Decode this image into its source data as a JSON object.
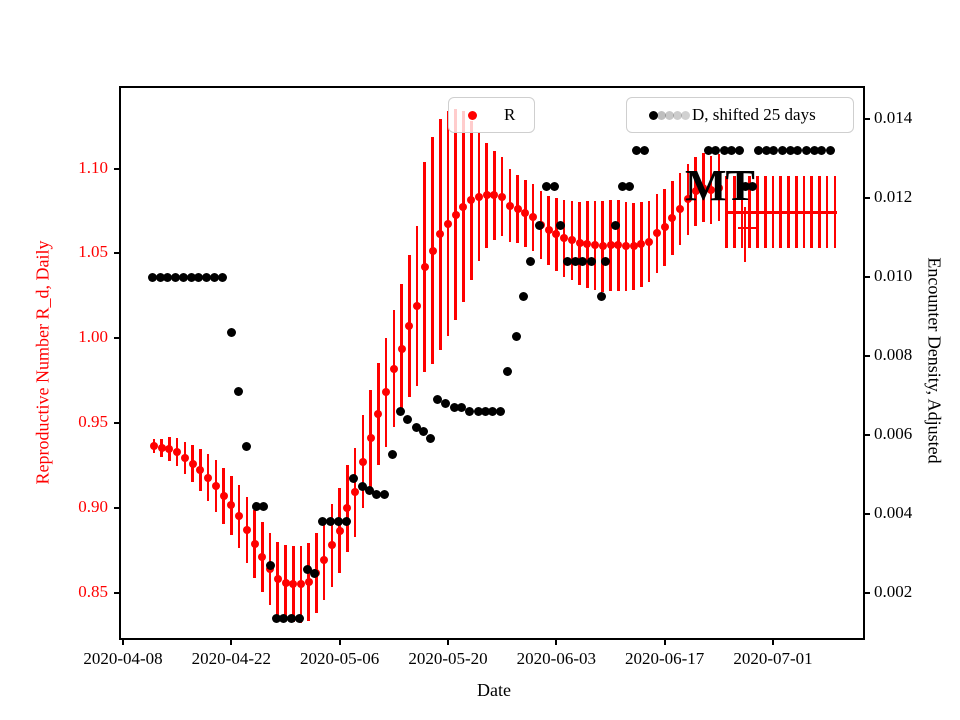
{
  "figure": {
    "bg": "#ffffff",
    "accent_red": "#ff0000",
    "black": "#000000"
  },
  "axes": {
    "xlabel": "Date",
    "left_ylabel": "Reproductive Number R_d, Daily",
    "right_ylabel": "Encounter Density, Adjusted",
    "left_label_color": "#ff0000",
    "right_label_color": "#000000",
    "x_ticks": [
      {
        "day": 0,
        "label": "2020-04-08"
      },
      {
        "day": 14,
        "label": "2020-04-22"
      },
      {
        "day": 28,
        "label": "2020-05-06"
      },
      {
        "day": 42,
        "label": "2020-05-20"
      },
      {
        "day": 56,
        "label": "2020-06-03"
      },
      {
        "day": 70,
        "label": "2020-06-17"
      },
      {
        "day": 84,
        "label": "2020-07-01"
      }
    ],
    "left_ticks": [
      {
        "v": 1.1,
        "label": "1.10"
      },
      {
        "v": 1.05,
        "label": "1.05"
      },
      {
        "v": 1.0,
        "label": "1.00"
      },
      {
        "v": 0.95,
        "label": "0.95"
      },
      {
        "v": 0.9,
        "label": "0.90"
      },
      {
        "v": 0.85,
        "label": "0.85"
      }
    ],
    "right_ticks": [
      {
        "v": 0.014,
        "label": "0.014"
      },
      {
        "v": 0.012,
        "label": "0.012"
      },
      {
        "v": 0.01,
        "label": "0.010"
      },
      {
        "v": 0.008,
        "label": "0.008"
      },
      {
        "v": 0.006,
        "label": "0.006"
      },
      {
        "v": 0.004,
        "label": "0.004"
      },
      {
        "v": 0.002,
        "label": "0.002"
      }
    ]
  },
  "legends": {
    "r": {
      "label": "R",
      "marker_color": "#ff0000"
    },
    "d": {
      "label": "D, shifted 25 days",
      "marker_color": "#000000",
      "fade_opacities": [
        1,
        0.25,
        0.22,
        0.2,
        0.18
      ]
    }
  },
  "annotation": {
    "text": "MT"
  },
  "chart_data": {
    "type": "scatter",
    "x_origin_date": "2020-04-08",
    "x_unit": "days_since_origin",
    "left_ylim": [
      0.822,
      1.149
    ],
    "right_ylim": [
      0.0008,
      0.0148
    ],
    "x_range_days": [
      -0.5,
      95.9
    ],
    "grid": false,
    "series": [
      {
        "name": "R",
        "axis": "left",
        "color": "#ff0000",
        "marker": "circle",
        "errorbars": true,
        "points_day_value_err": [
          [
            4,
            0.9365,
            0.0041
          ],
          [
            5,
            0.9353,
            0.0055
          ],
          [
            6,
            0.9347,
            0.0069
          ],
          [
            7,
            0.933,
            0.0083
          ],
          [
            8,
            0.9295,
            0.0097
          ],
          [
            9,
            0.9262,
            0.0111
          ],
          [
            10,
            0.9224,
            0.0125
          ],
          [
            11,
            0.918,
            0.0139
          ],
          [
            12,
            0.9129,
            0.0153
          ],
          [
            13,
            0.9074,
            0.0165
          ],
          [
            14,
            0.9016,
            0.0175
          ],
          [
            15,
            0.8951,
            0.0185
          ],
          [
            16,
            0.887,
            0.0193
          ],
          [
            17,
            0.879,
            0.02
          ],
          [
            18,
            0.871,
            0.0206
          ],
          [
            19,
            0.864,
            0.0211
          ],
          [
            20,
            0.8585,
            0.0216
          ],
          [
            21,
            0.8561,
            0.022
          ],
          [
            22,
            0.8551,
            0.0224
          ],
          [
            23,
            0.8551,
            0.0228
          ],
          [
            24,
            0.8565,
            0.0232
          ],
          [
            25,
            0.862,
            0.0236
          ],
          [
            26,
            0.8696,
            0.024
          ],
          [
            27,
            0.8782,
            0.0245
          ],
          [
            28,
            0.8866,
            0.025
          ],
          [
            29,
            0.9,
            0.0256
          ],
          [
            30,
            0.9092,
            0.0263
          ],
          [
            31,
            0.9274,
            0.0272
          ],
          [
            32,
            0.941,
            0.0285
          ],
          [
            33,
            0.9552,
            0.03
          ],
          [
            34,
            0.9681,
            0.032
          ],
          [
            35,
            0.9822,
            0.0345
          ],
          [
            36,
            0.9938,
            0.038
          ],
          [
            37,
            1.0072,
            0.042
          ],
          [
            38,
            1.0189,
            0.047
          ],
          [
            39,
            1.0419,
            0.062
          ],
          [
            40,
            1.0517,
            0.067
          ],
          [
            41,
            1.0613,
            0.068
          ],
          [
            42,
            1.0676,
            0.066
          ],
          [
            43,
            1.0729,
            0.062
          ],
          [
            44,
            1.0776,
            0.056
          ],
          [
            45,
            1.0812,
            0.047
          ],
          [
            46,
            1.0835,
            0.038
          ],
          [
            47,
            1.0841,
            0.031
          ],
          [
            48,
            1.0841,
            0.026
          ],
          [
            49,
            1.0835,
            0.0235
          ],
          [
            50,
            1.0782,
            0.0215
          ],
          [
            51,
            1.0759,
            0.02
          ],
          [
            52,
            1.0735,
            0.0195
          ],
          [
            53,
            1.0712,
            0.0195
          ],
          [
            54,
            1.0665,
            0.02
          ],
          [
            55,
            1.0635,
            0.0205
          ],
          [
            56,
            1.0612,
            0.0215
          ],
          [
            57,
            1.0588,
            0.0225
          ],
          [
            58,
            1.0576,
            0.0235
          ],
          [
            59,
            1.0559,
            0.0245
          ],
          [
            60,
            1.0553,
            0.0255
          ],
          [
            61,
            1.0547,
            0.0262
          ],
          [
            62,
            1.0541,
            0.0268
          ],
          [
            63,
            1.0547,
            0.027
          ],
          [
            64,
            1.0547,
            0.0268
          ],
          [
            65,
            1.0541,
            0.0262
          ],
          [
            66,
            1.0541,
            0.0255
          ],
          [
            67,
            1.0553,
            0.0248
          ],
          [
            68,
            1.057,
            0.024
          ],
          [
            69,
            1.0618,
            0.0232
          ],
          [
            70,
            1.0653,
            0.0225
          ],
          [
            71,
            1.0706,
            0.0218
          ],
          [
            72,
            1.0759,
            0.0212
          ],
          [
            73,
            1.0818,
            0.0208
          ],
          [
            74,
            1.0865,
            0.0205
          ],
          [
            75,
            1.0888,
            0.0202
          ],
          [
            76,
            1.0876,
            0.02
          ],
          [
            77,
            1.0888,
            0.02
          ]
        ]
      },
      {
        "name": "D, shifted 25 days",
        "axis": "right",
        "color": "#000000",
        "marker": "circle",
        "points_day_value": [
          [
            3.8,
            0.01
          ],
          [
            4.8,
            0.01
          ],
          [
            5.8,
            0.01
          ],
          [
            6.8,
            0.01
          ],
          [
            7.8,
            0.01
          ],
          [
            8.8,
            0.01
          ],
          [
            9.8,
            0.01
          ],
          [
            10.8,
            0.01
          ],
          [
            11.8,
            0.01
          ],
          [
            12.8,
            0.01
          ],
          [
            14,
            0.0086
          ],
          [
            14.9,
            0.0071
          ],
          [
            15.9,
            0.0057
          ],
          [
            17.2,
            0.0042
          ],
          [
            18.1,
            0.0042
          ],
          [
            19,
            0.0027
          ],
          [
            19.9,
            0.00135
          ],
          [
            20.8,
            0.00135
          ],
          [
            21.8,
            0.00135
          ],
          [
            22.8,
            0.00135
          ],
          [
            23.9,
            0.0026
          ],
          [
            24.7,
            0.0025
          ],
          [
            25.8,
            0.0038
          ],
          [
            26.8,
            0.0038
          ],
          [
            27.9,
            0.0038
          ],
          [
            28.9,
            0.0038
          ],
          [
            29.8,
            0.0049
          ],
          [
            30.9,
            0.0047
          ],
          [
            31.8,
            0.0046
          ],
          [
            32.8,
            0.0045
          ],
          [
            33.8,
            0.0045
          ],
          [
            34.8,
            0.0055
          ],
          [
            35.8,
            0.0066
          ],
          [
            36.8,
            0.0064
          ],
          [
            37.9,
            0.0062
          ],
          [
            38.8,
            0.0061
          ],
          [
            39.8,
            0.0059
          ],
          [
            40.7,
            0.0069
          ],
          [
            41.7,
            0.0068
          ],
          [
            42.8,
            0.0067
          ],
          [
            43.8,
            0.0067
          ],
          [
            44.8,
            0.0066
          ],
          [
            45.9,
            0.0066
          ],
          [
            46.8,
            0.0066
          ],
          [
            47.8,
            0.0066
          ],
          [
            48.8,
            0.0066
          ],
          [
            49.7,
            0.0076
          ],
          [
            50.8,
            0.0085
          ],
          [
            51.8,
            0.0095
          ],
          [
            52.6,
            0.0104
          ],
          [
            53.8,
            0.0113
          ],
          [
            54.7,
            0.0123
          ],
          [
            55.7,
            0.0123
          ],
          [
            56.6,
            0.0113
          ],
          [
            57.5,
            0.0104
          ],
          [
            58.5,
            0.0104
          ],
          [
            59.4,
            0.0104
          ],
          [
            60.5,
            0.0104
          ],
          [
            61.8,
            0.0095
          ],
          [
            62.4,
            0.0104
          ],
          [
            63.6,
            0.0113
          ],
          [
            64.5,
            0.0123
          ],
          [
            65.4,
            0.0123
          ],
          [
            66.4,
            0.0132
          ],
          [
            67.4,
            0.0132
          ],
          [
            75.6,
            0.0132
          ],
          [
            76.6,
            0.0132
          ],
          [
            77.7,
            0.0132
          ],
          [
            78.7,
            0.0132
          ],
          [
            79.7,
            0.0132
          ],
          [
            80.4,
            0.0123
          ],
          [
            81.4,
            0.0123
          ],
          [
            82.1,
            0.0132
          ],
          [
            83.1,
            0.0132
          ],
          [
            84.1,
            0.0132
          ],
          [
            85.2,
            0.0132
          ],
          [
            86.2,
            0.0132
          ],
          [
            87.2,
            0.0132
          ],
          [
            88.3,
            0.0132
          ],
          [
            89.3,
            0.0132
          ],
          [
            90.3,
            0.0132
          ],
          [
            91.4,
            0.0132
          ]
        ]
      }
    ],
    "forecast": {
      "value": 1.0741,
      "err": 0.0212,
      "line_day_start": 78,
      "line_day_end": 92.3,
      "bar_days": [
        78,
        79,
        80,
        81,
        82,
        83,
        84,
        85,
        86,
        87,
        88,
        89,
        90,
        91,
        92
      ],
      "secondary_line": {
        "value": 1.0649,
        "day_start": 79.5,
        "day_end": 82.2
      },
      "extra_bar": {
        "day": 80.4,
        "low": 1.0447,
        "high": 1.0776
      }
    }
  }
}
